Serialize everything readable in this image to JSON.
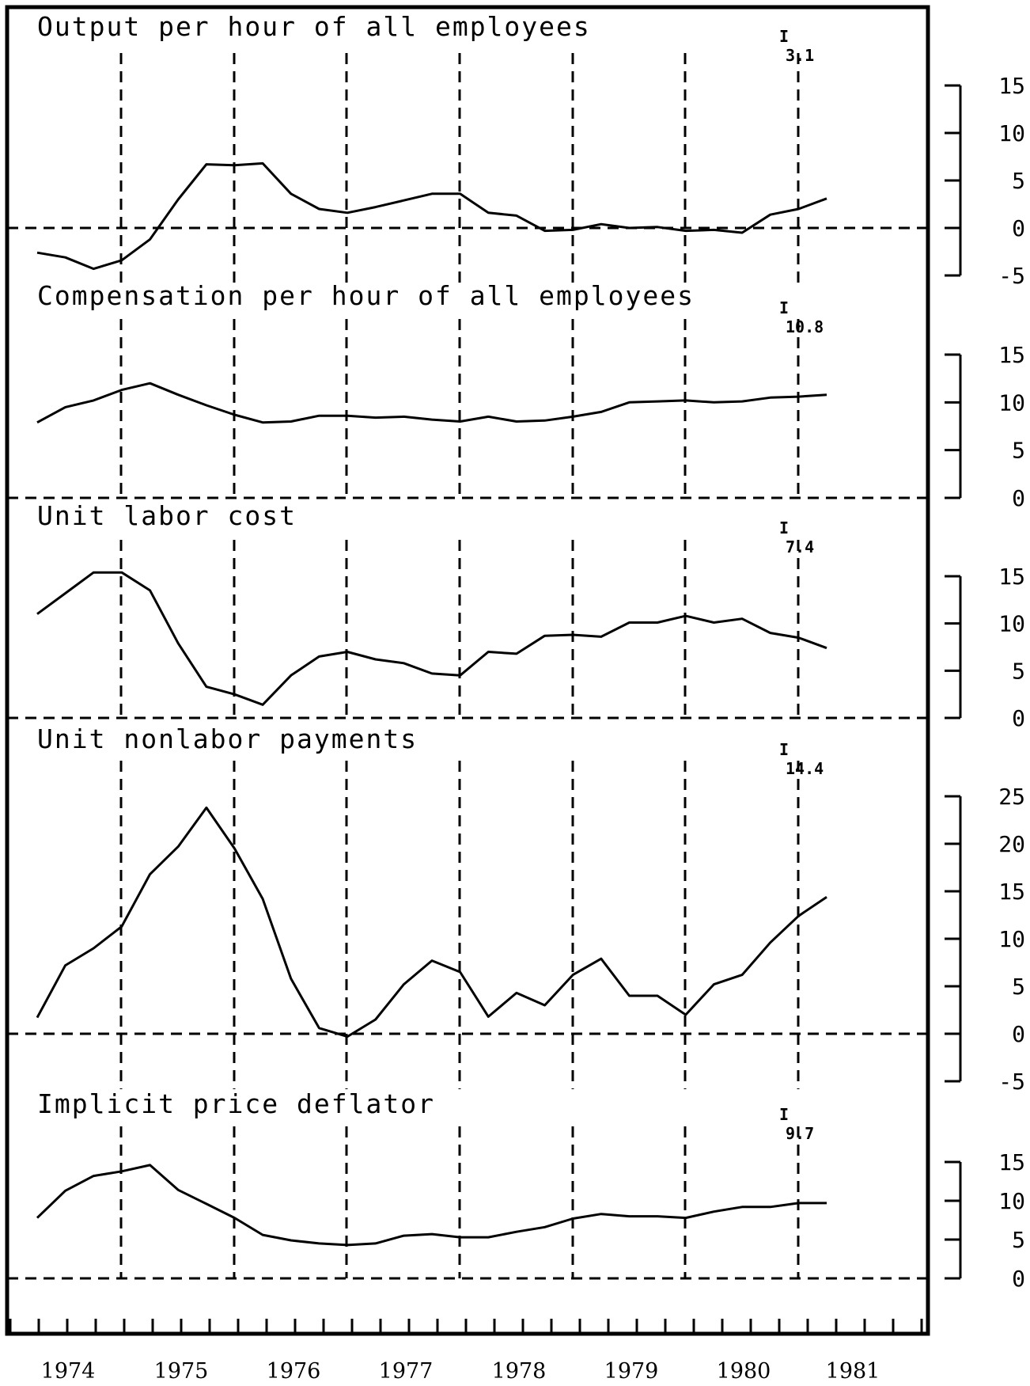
{
  "chart_data": [
    {
      "type": "line",
      "title": "Output per hour of all employees",
      "annotation": "3.1",
      "yticks": [
        -5,
        0,
        5,
        10,
        15
      ],
      "ylim": [
        -5,
        15
      ],
      "series": [
        {
          "values": [
            -2.6,
            -3.1,
            -4.3,
            -3.4,
            -1.2,
            3.0,
            6.7,
            6.6,
            6.8,
            3.6,
            2.0,
            1.6,
            2.2,
            2.9,
            3.6,
            3.6,
            1.6,
            1.3,
            -0.3,
            -0.2,
            0.4,
            0.0,
            0.1,
            -0.3,
            -0.2,
            -0.5,
            1.4,
            2.0,
            3.1
          ]
        }
      ]
    },
    {
      "type": "line",
      "title": "Compensation per hour of all employees",
      "annotation": "10.8",
      "yticks": [
        0,
        5,
        10,
        15
      ],
      "ylim": [
        0,
        15
      ],
      "series": [
        {
          "values": [
            7.9,
            9.5,
            10.2,
            11.3,
            12.0,
            10.8,
            9.7,
            8.7,
            7.9,
            8.0,
            8.6,
            8.6,
            8.4,
            8.5,
            8.2,
            8.0,
            8.5,
            8.0,
            8.1,
            8.5,
            9.0,
            10.0,
            10.1,
            10.2,
            10.0,
            10.1,
            10.5,
            10.6,
            10.8
          ]
        }
      ]
    },
    {
      "type": "line",
      "title": "Unit labor cost",
      "annotation": "7.4",
      "yticks": [
        0,
        5,
        10,
        15
      ],
      "ylim": [
        0,
        15
      ],
      "series": [
        {
          "values": [
            11.0,
            13.2,
            15.4,
            15.4,
            13.5,
            7.9,
            3.3,
            2.5,
            1.4,
            4.5,
            6.5,
            7.0,
            6.2,
            5.8,
            4.7,
            4.5,
            7.0,
            6.8,
            8.7,
            8.8,
            8.6,
            10.1,
            10.1,
            10.8,
            10.1,
            10.5,
            9.0,
            8.5,
            7.4
          ]
        }
      ]
    },
    {
      "type": "line",
      "title": "Unit nonlabor payments",
      "annotation": "14.4",
      "yticks": [
        -5,
        0,
        5,
        10,
        15,
        20,
        25
      ],
      "ylim": [
        -5,
        25
      ],
      "series": [
        {
          "values": [
            1.7,
            7.2,
            9.0,
            11.3,
            16.8,
            19.7,
            23.8,
            19.5,
            14.2,
            5.8,
            0.6,
            -0.3,
            1.5,
            5.2,
            7.7,
            6.5,
            1.8,
            4.3,
            3.0,
            6.2,
            7.9,
            4.0,
            4.0,
            2.0,
            5.2,
            6.2,
            9.6,
            12.4,
            14.4
          ]
        }
      ]
    },
    {
      "type": "line",
      "title": "Implicit price deflator",
      "annotation": "9.7",
      "yticks": [
        0,
        5,
        10,
        15
      ],
      "ylim": [
        0,
        15
      ],
      "series": [
        {
          "values": [
            7.8,
            11.3,
            13.2,
            13.8,
            14.6,
            11.4,
            9.6,
            7.8,
            5.6,
            4.9,
            4.5,
            4.3,
            4.5,
            5.5,
            5.7,
            5.3,
            5.3,
            6.0,
            6.6,
            7.7,
            8.3,
            8.0,
            8.0,
            7.8,
            8.6,
            9.2,
            9.2,
            9.7,
            9.7
          ]
        }
      ]
    }
  ],
  "x_axis": {
    "years": [
      "1974",
      "1975",
      "1976",
      "1977",
      "1978",
      "1979",
      "1980",
      "1981"
    ]
  }
}
